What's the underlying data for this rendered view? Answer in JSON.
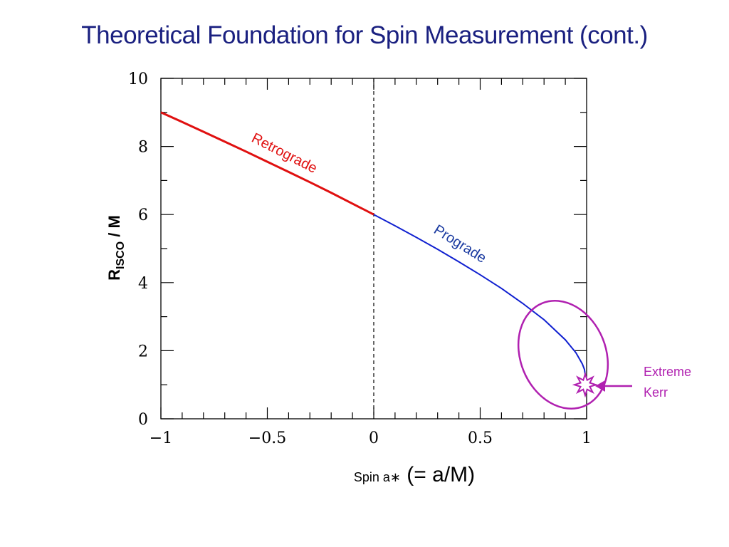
{
  "slide": {
    "title": "Theoretical Foundation for Spin Measurement (cont.)"
  },
  "chart_data": {
    "type": "line",
    "xlim": [
      -1,
      1
    ],
    "ylim": [
      0,
      10
    ],
    "x_ticks": [
      -1,
      -0.5,
      0,
      0.5,
      1
    ],
    "x_tick_labels": [
      "−1",
      "−0.5",
      "0",
      "0.5",
      "1"
    ],
    "y_ticks": [
      0,
      2,
      4,
      6,
      8,
      10
    ],
    "y_tick_labels": [
      "0",
      "2",
      "4",
      "6",
      "8",
      "10"
    ],
    "ylabel_main": "R",
    "ylabel_sub": "ISCO",
    "ylabel_tail": " / M",
    "xlabel_small": "Spin a∗",
    "xlabel_big": " (= a/M)",
    "vertical_dashed_line_x": 0,
    "grid": false,
    "series": [
      {
        "name": "Retrograde",
        "color": "#e01010",
        "x": [
          -1.0,
          -0.9,
          -0.8,
          -0.7,
          -0.6,
          -0.5,
          -0.4,
          -0.3,
          -0.2,
          -0.1,
          0.0
        ],
        "y": [
          9.0,
          8.72,
          8.43,
          8.14,
          7.85,
          7.55,
          7.25,
          6.95,
          6.64,
          6.32,
          6.0
        ]
      },
      {
        "name": "Prograde",
        "color": "#1020d0",
        "x": [
          0.0,
          0.1,
          0.2,
          0.3,
          0.4,
          0.5,
          0.6,
          0.7,
          0.8,
          0.9,
          0.95,
          0.98,
          0.99,
          1.0
        ],
        "y": [
          6.0,
          5.67,
          5.33,
          4.98,
          4.61,
          4.23,
          3.83,
          3.39,
          2.91,
          2.32,
          1.94,
          1.61,
          1.45,
          1.0
        ]
      }
    ],
    "annotations": {
      "retrograde_label": "Retrograde",
      "prograde_label": "Prograde",
      "extreme_kerr_line1": "Extreme",
      "extreme_kerr_line2": "Kerr",
      "highlight_color": "#b020b0"
    }
  }
}
